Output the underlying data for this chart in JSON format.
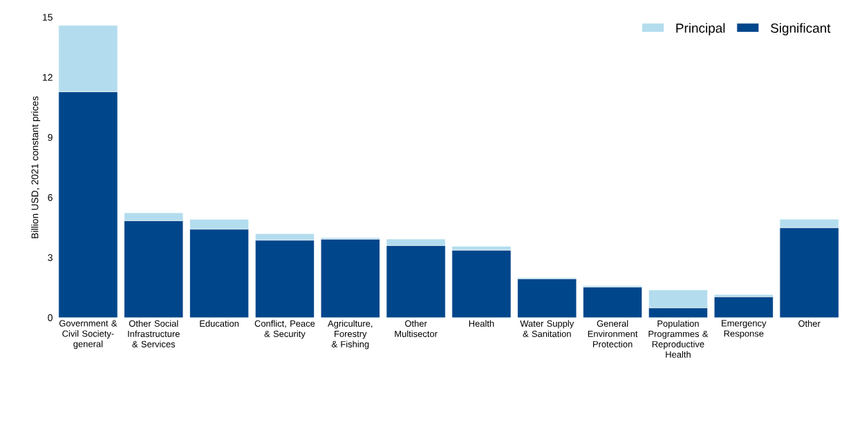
{
  "chart_data": {
    "type": "bar",
    "stacked": true,
    "ylabel": "Billion USD, 2021 constant prices",
    "categories": [
      "Government & Civil Society-general",
      "Other Social Infrastructure & Services",
      "Education",
      "Conflict, Peace & Security",
      "Agriculture, Forestry & Fishing",
      "Other Multisector",
      "Health",
      "Water Supply & Sanitation",
      "General Environment Protection",
      "Population Programmes & Reproductive Health",
      "Emergency Response",
      "Other"
    ],
    "series": [
      {
        "name": "Significant",
        "color": "#00468b",
        "values": [
          11.28,
          4.84,
          4.42,
          3.87,
          3.92,
          3.6,
          3.37,
          1.94,
          1.53,
          0.49,
          1.04,
          4.49
        ]
      },
      {
        "name": "Principal",
        "color": "#b3ddee",
        "values": [
          3.32,
          0.4,
          0.49,
          0.33,
          0.08,
          0.33,
          0.2,
          0.06,
          0.07,
          0.9,
          0.12,
          0.43
        ]
      }
    ],
    "ylim": [
      0,
      15
    ],
    "yticks": [
      0,
      3,
      6,
      9,
      12,
      15
    ],
    "legend": "top right"
  }
}
